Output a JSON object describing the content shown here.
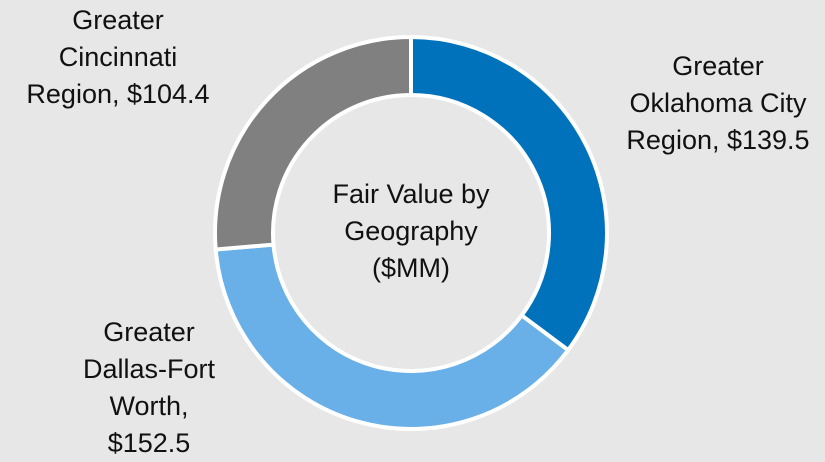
{
  "chart_data": {
    "type": "donut",
    "title": "Fair Value by Geography ($MM)",
    "categories": [
      "Greater Oklahoma City Region, $139.5",
      "Greater Dallas-Fort Worth, $152.5",
      "Greater Cincinnati Region, $104.4"
    ],
    "values": [
      139.5,
      152.5,
      104.4
    ],
    "colors": [
      "#0072bc",
      "#6ab0e8",
      "#808080"
    ]
  }
}
